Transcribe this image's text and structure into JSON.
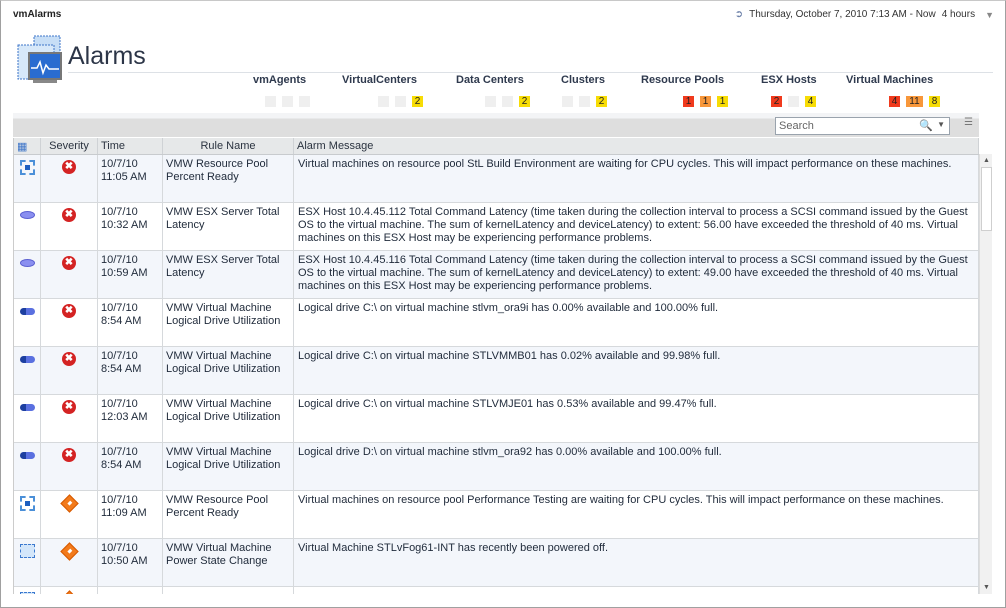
{
  "app": {
    "title": "vmAlarms"
  },
  "time_range": {
    "label": "Thursday, October 7, 2010  7:13 AM - Now",
    "duration": "4 hours"
  },
  "page": {
    "title": "Alarms"
  },
  "categories": [
    {
      "name": "vmAgents",
      "counts": [
        {
          "v": "",
          "c": "none"
        },
        {
          "v": "",
          "c": "none"
        },
        {
          "v": "",
          "c": "none"
        }
      ]
    },
    {
      "name": "VirtualCenters",
      "counts": [
        {
          "v": "",
          "c": "none"
        },
        {
          "v": "",
          "c": "none"
        },
        {
          "v": "2",
          "c": "warning"
        }
      ]
    },
    {
      "name": "Data Centers",
      "counts": [
        {
          "v": "",
          "c": "none"
        },
        {
          "v": "",
          "c": "none"
        },
        {
          "v": "2",
          "c": "warning"
        }
      ]
    },
    {
      "name": "Clusters",
      "counts": [
        {
          "v": "",
          "c": "none"
        },
        {
          "v": "",
          "c": "none"
        },
        {
          "v": "2",
          "c": "warning"
        }
      ]
    },
    {
      "name": "Resource Pools",
      "counts": [
        {
          "v": "1",
          "c": "critical"
        },
        {
          "v": "1",
          "c": "major"
        },
        {
          "v": "1",
          "c": "warning"
        }
      ]
    },
    {
      "name": "ESX Hosts",
      "counts": [
        {
          "v": "2",
          "c": "critical"
        },
        {
          "v": "",
          "c": "none"
        },
        {
          "v": "4",
          "c": "warning"
        }
      ]
    },
    {
      "name": "Virtual Machines",
      "counts": [
        {
          "v": "4",
          "c": "critical"
        },
        {
          "v": "11",
          "c": "major"
        },
        {
          "v": "8",
          "c": "warning"
        }
      ]
    }
  ],
  "colors": {
    "critical": "#f03a1d",
    "major": "#f8973a",
    "warning": "#f7dc05",
    "none": "#efefef"
  },
  "search": {
    "placeholder": "Search"
  },
  "table": {
    "headers": [
      "",
      "Severity",
      "Time",
      "Rule Name",
      "Alarm Message"
    ],
    "rows": [
      {
        "obj": "resource-pool",
        "sev": "critical",
        "date": "10/7/10",
        "time": "11:05 AM",
        "rule": "VMW Resource Pool Percent Ready",
        "msg": "Virtual machines on resource pool StL Build Environment are waiting for CPU cycles. This will impact performance on these machines."
      },
      {
        "obj": "esx-host",
        "sev": "critical",
        "date": "10/7/10",
        "time": "10:32 AM",
        "rule": "VMW ESX Server Total Latency",
        "msg": "ESX Host 10.4.45.112 Total Command Latency (time taken during the collection interval to process a SCSI command issued by the Guest OS to the virtual machine. The sum of kernelLatency and deviceLatency) to extent: 56.00 have exceeded the threshold of 40 ms. Virtual machines on this ESX Host may be experiencing performance problems."
      },
      {
        "obj": "esx-host",
        "sev": "critical",
        "date": "10/7/10",
        "time": "10:59 AM",
        "rule": "VMW ESX Server Total Latency",
        "msg": "ESX Host 10.4.45.116 Total Command Latency (time taken during the collection interval to process a SCSI command issued by the Guest OS to the virtual machine. The sum of kernelLatency and deviceLatency) to extent: 49.00 have exceeded the threshold of 40 ms. Virtual machines on this ESX Host may be experiencing performance problems."
      },
      {
        "obj": "virtual-disk",
        "sev": "critical",
        "date": "10/7/10",
        "time": "8:54 AM",
        "rule": "VMW Virtual Machine Logical Drive Utilization",
        "msg": "Logical drive C:\\ on virtual machine stlvm_ora9i has 0.00% available and 100.00% full."
      },
      {
        "obj": "virtual-disk",
        "sev": "critical",
        "date": "10/7/10",
        "time": "8:54 AM",
        "rule": "VMW Virtual Machine Logical Drive Utilization",
        "msg": "Logical drive C:\\ on virtual machine STLVMMB01 has 0.02% available and 99.98% full."
      },
      {
        "obj": "virtual-disk",
        "sev": "critical",
        "date": "10/7/10",
        "time": "12:03 AM",
        "rule": "VMW Virtual Machine Logical Drive Utilization",
        "msg": "Logical drive C:\\ on virtual machine STLVMJE01 has 0.53% available and 99.47% full."
      },
      {
        "obj": "virtual-disk",
        "sev": "critical",
        "date": "10/7/10",
        "time": "8:54 AM",
        "rule": "VMW Virtual Machine Logical Drive Utilization",
        "msg": "Logical drive D:\\ on virtual machine stlvm_ora92 has 0.00% available and 100.00% full."
      },
      {
        "obj": "resource-pool",
        "sev": "major",
        "date": "10/7/10",
        "time": "11:09 AM",
        "rule": "VMW Resource Pool Percent Ready",
        "msg": "Virtual machines on resource pool Performance Testing are waiting for CPU cycles. This will impact performance on these machines."
      },
      {
        "obj": "virtual-machine",
        "sev": "major",
        "date": "10/7/10",
        "time": "10:50 AM",
        "rule": "VMW Virtual Machine Power State Change",
        "msg": "Virtual Machine STLvFog61-INT has recently been powered off."
      },
      {
        "obj": "virtual-machine",
        "sev": "warning",
        "date": "",
        "time": "",
        "rule": "",
        "msg": ""
      }
    ]
  }
}
